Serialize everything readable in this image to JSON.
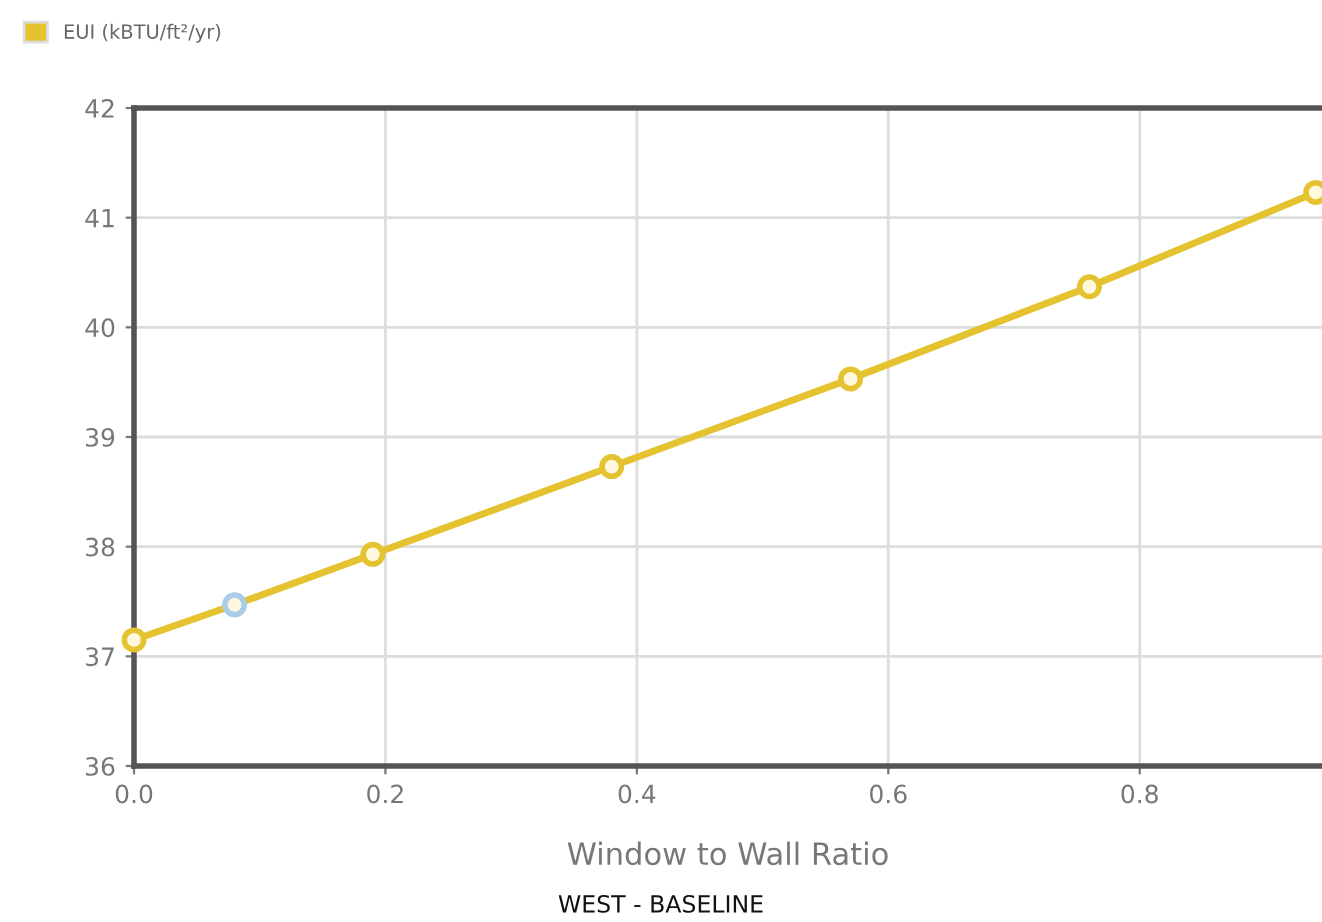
{
  "chart_data": {
    "type": "line",
    "xlabel": "Window to Wall Ratio",
    "annotations": [
      "WEST - BASELINE"
    ],
    "series": [
      {
        "name": "EUI (kBTU/ft²/yr)",
        "color": "#e5c230",
        "x": [
          0,
          0.08,
          0.19,
          0.38,
          0.57,
          0.76,
          0.94
        ],
        "values": [
          37.15,
          37.47,
          37.93,
          38.73,
          39.53,
          40.37,
          41.23
        ],
        "colors": [
          "#e5c230",
          "#a9cde8",
          "#e5c230",
          "#e5c230",
          "#e5c230",
          "#e5c230",
          "#e5c230"
        ]
      }
    ],
    "xlim": [
      0,
      0.945
    ],
    "xticks": [
      {
        "value": 0,
        "label": "0.0"
      },
      0.2,
      0.4,
      0.6,
      0.8
    ],
    "ylim": [
      36,
      42
    ],
    "yticks": [
      36,
      37,
      38,
      39,
      40,
      41,
      42
    ],
    "grid": true,
    "legend": "top left",
    "marker": "circle",
    "line_style": "solid"
  }
}
